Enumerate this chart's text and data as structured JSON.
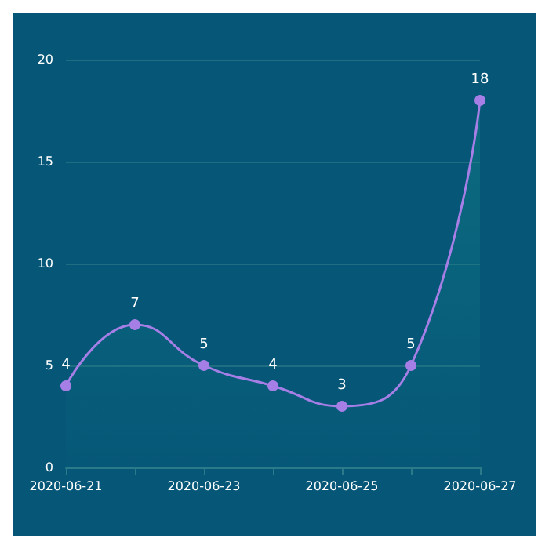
{
  "chart_data": {
    "type": "area",
    "categories": [
      "2020-06-21",
      null,
      "2020-06-23",
      null,
      "2020-06-25",
      null,
      "2020-06-27"
    ],
    "series": [
      {
        "color": "#a57fe6",
        "values": [
          4,
          7,
          5,
          4,
          3,
          5,
          18
        ]
      }
    ],
    "ylim": [
      0,
      20
    ],
    "yticks": [
      0,
      5,
      10,
      15,
      20
    ],
    "grid": "y",
    "data_labels": true,
    "marker": "circle"
  }
}
